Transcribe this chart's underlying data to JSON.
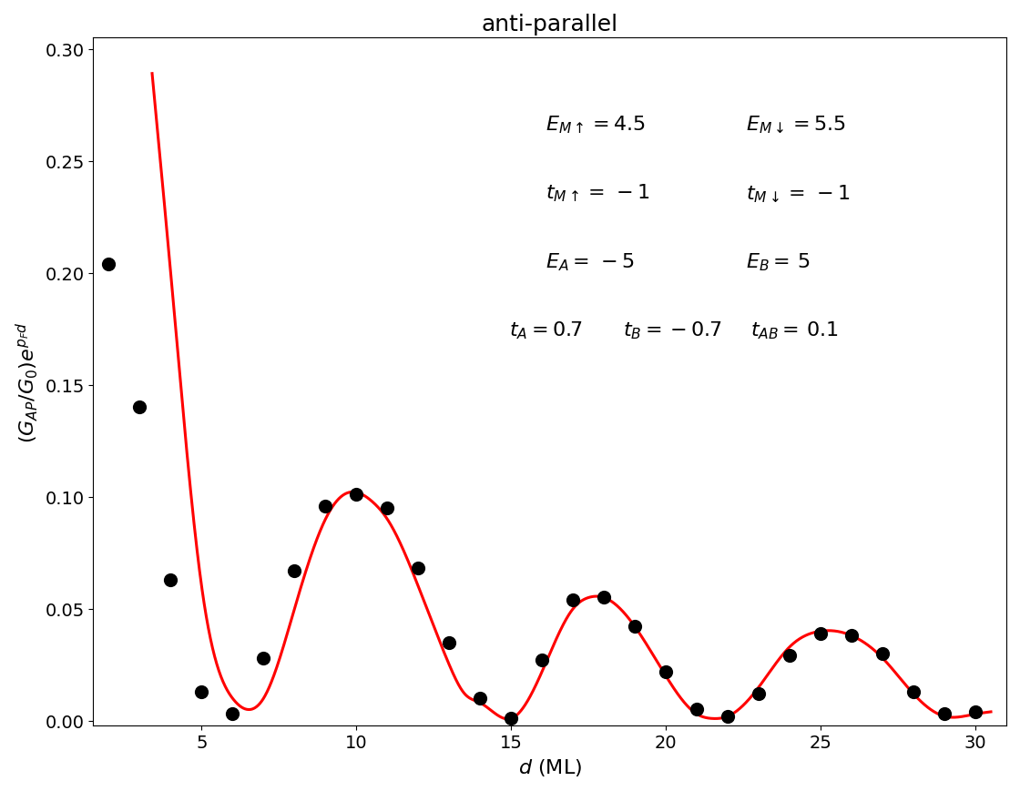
{
  "title": "anti-parallel",
  "xlabel": "$d$ (ML)",
  "ylabel": "$(G_{AP}/G_0)e^{p_F d}$",
  "xlim": [
    1.5,
    31
  ],
  "ylim": [
    -0.002,
    0.305
  ],
  "yticks": [
    0.0,
    0.05,
    0.1,
    0.15,
    0.2,
    0.25,
    0.3
  ],
  "xticks": [
    5,
    10,
    15,
    20,
    25,
    30
  ],
  "background_color": "#ffffff",
  "dot_color": "#000000",
  "line_color": "#ff0000",
  "dot_size": 120,
  "line_width": 2.2,
  "dots_x": [
    2,
    3,
    4,
    5,
    6,
    7,
    8,
    9,
    10,
    11,
    12,
    13,
    14,
    15,
    16,
    17,
    18,
    19,
    20,
    21,
    22,
    23,
    24,
    25,
    26,
    27,
    28,
    29,
    30
  ],
  "dots_y": [
    0.204,
    0.14,
    0.063,
    0.013,
    0.003,
    0.028,
    0.067,
    0.096,
    0.101,
    0.095,
    0.068,
    0.035,
    0.01,
    0.001,
    0.027,
    0.054,
    0.055,
    0.042,
    0.022,
    0.005,
    0.002,
    0.012,
    0.029,
    0.039,
    0.038,
    0.03,
    0.013,
    0.003,
    0.004
  ],
  "curve_x": [
    3.4,
    4.0,
    5.0,
    6.0,
    6.5,
    7.0,
    8.0,
    9.0,
    9.5,
    10.0,
    10.5,
    11.0,
    12.0,
    13.0,
    13.5,
    14.0,
    15.0,
    16.0,
    17.0,
    17.5,
    18.0,
    19.0,
    20.0,
    21.0,
    21.5,
    22.0,
    23.0,
    24.0,
    25.0,
    25.5,
    26.0,
    27.0,
    28.0,
    29.0,
    30.0,
    30.5
  ],
  "curve_y": [
    0.289,
    0.2,
    0.06,
    0.01,
    0.005,
    0.01,
    0.05,
    0.09,
    0.1,
    0.102,
    0.098,
    0.09,
    0.06,
    0.025,
    0.012,
    0.008,
    0.001,
    0.022,
    0.05,
    0.055,
    0.055,
    0.042,
    0.02,
    0.003,
    0.001,
    0.002,
    0.015,
    0.033,
    0.04,
    0.04,
    0.038,
    0.028,
    0.012,
    0.002,
    0.003,
    0.004
  ],
  "title_fontsize": 18,
  "label_fontsize": 16,
  "tick_fontsize": 14,
  "annotation_fontsize": 16
}
